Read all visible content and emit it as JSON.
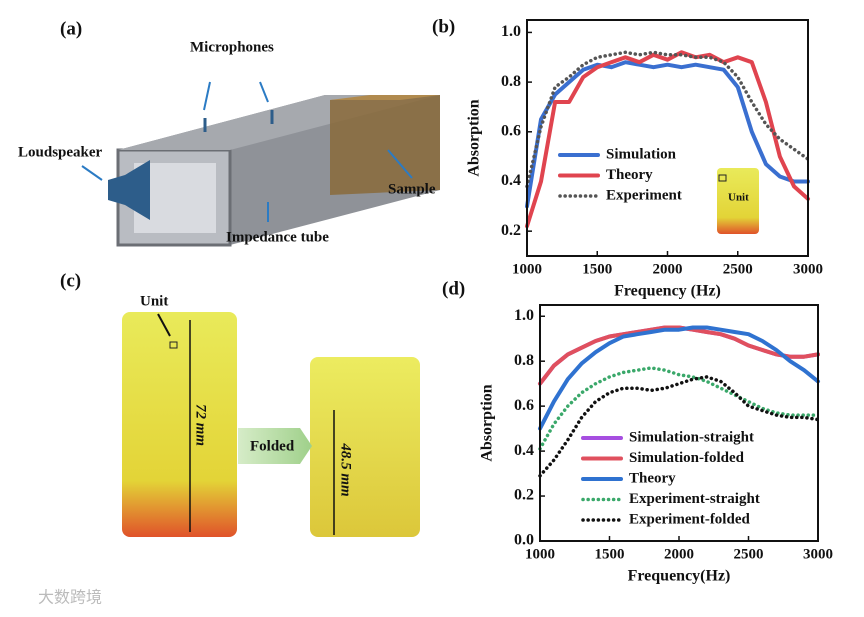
{
  "figure": {
    "panels": [
      "(a)",
      "(b)",
      "(c)",
      "(d)"
    ],
    "a": {
      "microphones": "Microphones",
      "loudspeaker": "Loudspeaker",
      "sample": "Sample",
      "tube": "Impedance tube"
    },
    "b_inset": "Unit",
    "c": {
      "unit": "Unit",
      "tall": "72 mm",
      "arrow": "Folded",
      "short": "48.5 mm"
    },
    "watermark": "大数跨境"
  },
  "chart_data": [
    {
      "type": "line",
      "xlabel": "Frequency (Hz)",
      "ylabel": "Absorption",
      "x": [
        1000,
        1100,
        1200,
        1300,
        1400,
        1500,
        1600,
        1700,
        1800,
        1900,
        2000,
        2100,
        2200,
        2300,
        2400,
        2500,
        2600,
        2700,
        2800,
        2900,
        3000
      ],
      "xlim": [
        1000,
        3000
      ],
      "xticks": [
        1000,
        1500,
        2000,
        2500,
        3000
      ],
      "ylim": [
        0.1,
        1.05
      ],
      "yticks": [
        0.2,
        0.4,
        0.6,
        0.8,
        {
          "value": 1,
          "label": "1.0"
        }
      ],
      "legend": "lower left",
      "series": [
        {
          "name": "Simulation",
          "color": "#3a6fd0",
          "style": "solid",
          "values": [
            0.3,
            0.65,
            0.75,
            0.8,
            0.85,
            0.87,
            0.86,
            0.88,
            0.87,
            0.86,
            0.87,
            0.86,
            0.87,
            0.86,
            0.85,
            0.78,
            0.6,
            0.47,
            0.42,
            0.4,
            0.4
          ]
        },
        {
          "name": "Theory",
          "color": "#e0444f",
          "style": "solid",
          "values": [
            0.22,
            0.4,
            0.72,
            0.72,
            0.82,
            0.86,
            0.88,
            0.9,
            0.88,
            0.91,
            0.89,
            0.92,
            0.9,
            0.91,
            0.88,
            0.9,
            0.88,
            0.72,
            0.5,
            0.38,
            0.33
          ]
        },
        {
          "name": "Experiment",
          "color": "#555555",
          "style": "dotted",
          "values": [
            0.38,
            0.62,
            0.78,
            0.82,
            0.87,
            0.9,
            0.91,
            0.92,
            0.91,
            0.92,
            0.91,
            0.91,
            0.9,
            0.9,
            0.88,
            0.82,
            0.72,
            0.63,
            0.57,
            0.53,
            0.49
          ]
        }
      ]
    },
    {
      "type": "line",
      "xlabel": "Frequency(Hz)",
      "ylabel": "Absorption",
      "x": [
        1000,
        1100,
        1200,
        1300,
        1400,
        1500,
        1600,
        1700,
        1800,
        1900,
        2000,
        2100,
        2200,
        2300,
        2400,
        2500,
        2600,
        2700,
        2800,
        2900,
        3000
      ],
      "xlim": [
        1000,
        3000
      ],
      "xticks": [
        1000,
        1500,
        2000,
        2500,
        3000
      ],
      "ylim": [
        0,
        1.05
      ],
      "yticks": [
        {
          "value": 0,
          "label": "0.0"
        },
        0.2,
        0.4,
        0.6,
        0.8,
        {
          "value": 1,
          "label": "1.0"
        }
      ],
      "legend": "lower left",
      "series": [
        {
          "name": "Simulation-straight",
          "color": "#a64ee0",
          "style": "solid",
          "values": [
            0.7,
            0.78,
            0.83,
            0.86,
            0.89,
            0.91,
            0.92,
            0.93,
            0.94,
            0.95,
            0.95,
            0.94,
            0.93,
            0.92,
            0.9,
            0.87,
            0.85,
            0.83,
            0.82,
            0.82,
            0.83
          ]
        },
        {
          "name": "Simulation-folded",
          "color": "#e0505e",
          "style": "solid",
          "values": [
            0.7,
            0.78,
            0.83,
            0.86,
            0.89,
            0.91,
            0.92,
            0.93,
            0.94,
            0.95,
            0.95,
            0.94,
            0.93,
            0.92,
            0.9,
            0.87,
            0.85,
            0.83,
            0.82,
            0.82,
            0.83
          ]
        },
        {
          "name": "Theory",
          "color": "#2f72d0",
          "style": "solid",
          "values": [
            0.5,
            0.62,
            0.72,
            0.79,
            0.84,
            0.88,
            0.91,
            0.92,
            0.93,
            0.94,
            0.94,
            0.95,
            0.95,
            0.94,
            0.93,
            0.92,
            0.89,
            0.85,
            0.8,
            0.76,
            0.71
          ]
        },
        {
          "name": "Experiment-straight",
          "color": "#3aa86a",
          "style": "dotted",
          "values": [
            0.41,
            0.52,
            0.6,
            0.66,
            0.7,
            0.73,
            0.75,
            0.76,
            0.77,
            0.76,
            0.74,
            0.73,
            0.71,
            0.68,
            0.65,
            0.62,
            0.59,
            0.57,
            0.56,
            0.56,
            0.56
          ]
        },
        {
          "name": "Experiment-folded",
          "color": "#111111",
          "style": "dotted",
          "values": [
            0.29,
            0.36,
            0.45,
            0.55,
            0.62,
            0.66,
            0.68,
            0.68,
            0.67,
            0.68,
            0.7,
            0.72,
            0.73,
            0.71,
            0.66,
            0.6,
            0.58,
            0.56,
            0.55,
            0.55,
            0.54
          ]
        }
      ]
    }
  ]
}
